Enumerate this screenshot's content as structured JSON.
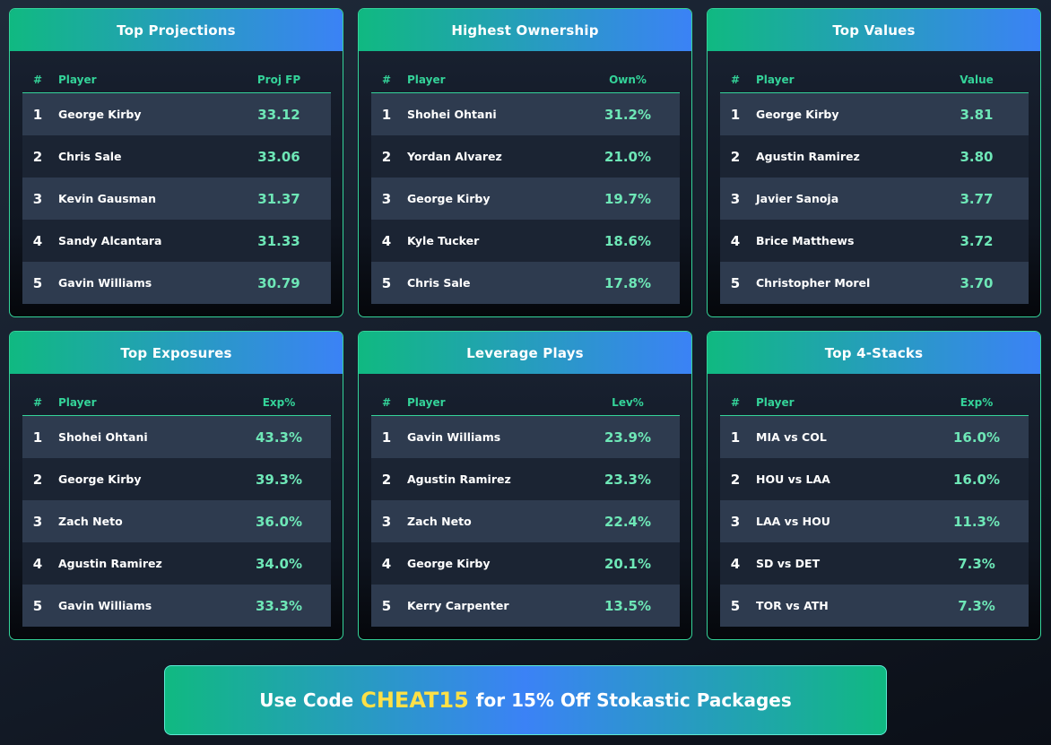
{
  "cards": [
    {
      "title": "Top Projections",
      "col_rank": "#",
      "col_player": "Player",
      "col_value": "Proj FP",
      "rows": [
        {
          "rank": "1",
          "player": "George Kirby",
          "value": "33.12"
        },
        {
          "rank": "2",
          "player": "Chris Sale",
          "value": "33.06"
        },
        {
          "rank": "3",
          "player": "Kevin Gausman",
          "value": "31.37"
        },
        {
          "rank": "4",
          "player": "Sandy Alcantara",
          "value": "31.33"
        },
        {
          "rank": "5",
          "player": "Gavin Williams",
          "value": "30.79"
        }
      ]
    },
    {
      "title": "Highest Ownership",
      "col_rank": "#",
      "col_player": "Player",
      "col_value": "Own%",
      "rows": [
        {
          "rank": "1",
          "player": "Shohei Ohtani",
          "value": "31.2%"
        },
        {
          "rank": "2",
          "player": "Yordan Alvarez",
          "value": "21.0%"
        },
        {
          "rank": "3",
          "player": "George Kirby",
          "value": "19.7%"
        },
        {
          "rank": "4",
          "player": "Kyle Tucker",
          "value": "18.6%"
        },
        {
          "rank": "5",
          "player": "Chris Sale",
          "value": "17.8%"
        }
      ]
    },
    {
      "title": "Top Values",
      "col_rank": "#",
      "col_player": "Player",
      "col_value": "Value",
      "rows": [
        {
          "rank": "1",
          "player": "George Kirby",
          "value": "3.81"
        },
        {
          "rank": "2",
          "player": "Agustin Ramirez",
          "value": "3.80"
        },
        {
          "rank": "3",
          "player": "Javier Sanoja",
          "value": "3.77"
        },
        {
          "rank": "4",
          "player": "Brice Matthews",
          "value": "3.72"
        },
        {
          "rank": "5",
          "player": "Christopher Morel",
          "value": "3.70"
        }
      ]
    },
    {
      "title": "Top Exposures",
      "col_rank": "#",
      "col_player": "Player",
      "col_value": "Exp%",
      "rows": [
        {
          "rank": "1",
          "player": "Shohei Ohtani",
          "value": "43.3%"
        },
        {
          "rank": "2",
          "player": "George Kirby",
          "value": "39.3%"
        },
        {
          "rank": "3",
          "player": "Zach Neto",
          "value": "36.0%"
        },
        {
          "rank": "4",
          "player": "Agustin Ramirez",
          "value": "34.0%"
        },
        {
          "rank": "5",
          "player": "Gavin Williams",
          "value": "33.3%"
        }
      ]
    },
    {
      "title": "Leverage Plays",
      "col_rank": "#",
      "col_player": "Player",
      "col_value": "Lev%",
      "rows": [
        {
          "rank": "1",
          "player": "Gavin Williams",
          "value": "23.9%"
        },
        {
          "rank": "2",
          "player": "Agustin Ramirez",
          "value": "23.3%"
        },
        {
          "rank": "3",
          "player": "Zach Neto",
          "value": "22.4%"
        },
        {
          "rank": "4",
          "player": "George Kirby",
          "value": "20.1%"
        },
        {
          "rank": "5",
          "player": "Kerry Carpenter",
          "value": "13.5%"
        }
      ]
    },
    {
      "title": "Top 4-Stacks",
      "col_rank": "#",
      "col_player": "Player",
      "col_value": "Exp%",
      "rows": [
        {
          "rank": "1",
          "player": "MIA vs COL",
          "value": "16.0%"
        },
        {
          "rank": "2",
          "player": "HOU vs LAA",
          "value": "16.0%"
        },
        {
          "rank": "3",
          "player": "LAA vs HOU",
          "value": "11.3%"
        },
        {
          "rank": "4",
          "player": "SD vs DET",
          "value": "7.3%"
        },
        {
          "rank": "5",
          "player": "TOR vs ATH",
          "value": "7.3%"
        }
      ]
    }
  ],
  "banner": {
    "prefix": "Use Code",
    "code": "CHEAT15",
    "suffix": "for 15% Off Stokastic Packages"
  },
  "colors": {
    "accent_green": "#10b981",
    "accent_blue": "#3b82f6",
    "value_text": "#6ee7b7",
    "code_text": "#fde047"
  }
}
